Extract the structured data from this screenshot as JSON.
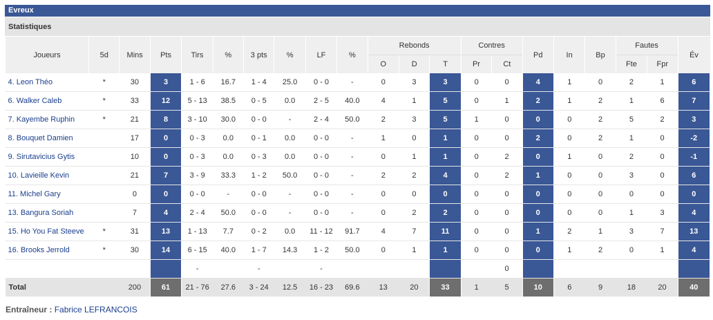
{
  "team_name": "Evreux",
  "section_title": "Statistiques",
  "headers": {
    "joueurs": "Joueurs",
    "d5": "5d",
    "mins": "Mins",
    "pts": "Pts",
    "tirs": "Tirs",
    "pct1": "%",
    "p3": "3 pts",
    "pct2": "%",
    "lf": "LF",
    "pct3": "%",
    "rebonds": "Rebonds",
    "contres": "Contres",
    "pd": "Pd",
    "in": "In",
    "bp": "Bp",
    "fautes": "Fautes",
    "ev": "Év",
    "o": "O",
    "d": "D",
    "t": "T",
    "pr": "Pr",
    "ct": "Ct",
    "fte": "Fte",
    "fpr": "Fpr"
  },
  "players": [
    {
      "name": "4. Leon Théo",
      "d5": "*",
      "mins": "30",
      "pts": "3",
      "tirs": "1 - 6",
      "tpct": "16.7",
      "p3": "1 - 4",
      "p3pct": "25.0",
      "lf": "0 - 0",
      "lfpct": "-",
      "o": "0",
      "d": "3",
      "t": "3",
      "pr": "0",
      "ct": "0",
      "pd": "4",
      "in": "1",
      "bp": "0",
      "fte": "2",
      "fpr": "1",
      "ev": "6"
    },
    {
      "name": "6. Walker Caleb",
      "d5": "*",
      "mins": "33",
      "pts": "12",
      "tirs": "5 - 13",
      "tpct": "38.5",
      "p3": "0 - 5",
      "p3pct": "0.0",
      "lf": "2 - 5",
      "lfpct": "40.0",
      "o": "4",
      "d": "1",
      "t": "5",
      "pr": "0",
      "ct": "1",
      "pd": "2",
      "in": "1",
      "bp": "2",
      "fte": "1",
      "fpr": "6",
      "ev": "7"
    },
    {
      "name": "7. Kayembe Ruphin",
      "d5": "*",
      "mins": "21",
      "pts": "8",
      "tirs": "3 - 10",
      "tpct": "30.0",
      "p3": "0 - 0",
      "p3pct": "-",
      "lf": "2 - 4",
      "lfpct": "50.0",
      "o": "2",
      "d": "3",
      "t": "5",
      "pr": "1",
      "ct": "0",
      "pd": "0",
      "in": "0",
      "bp": "2",
      "fte": "5",
      "fpr": "2",
      "ev": "3"
    },
    {
      "name": "8. Bouquet Damien",
      "d5": "",
      "mins": "17",
      "pts": "0",
      "tirs": "0 - 3",
      "tpct": "0.0",
      "p3": "0 - 1",
      "p3pct": "0.0",
      "lf": "0 - 0",
      "lfpct": "-",
      "o": "1",
      "d": "0",
      "t": "1",
      "pr": "0",
      "ct": "0",
      "pd": "2",
      "in": "0",
      "bp": "2",
      "fte": "1",
      "fpr": "0",
      "ev": "-2"
    },
    {
      "name": "9. Sirutavicius Gytis",
      "d5": "",
      "mins": "10",
      "pts": "0",
      "tirs": "0 - 3",
      "tpct": "0.0",
      "p3": "0 - 3",
      "p3pct": "0.0",
      "lf": "0 - 0",
      "lfpct": "-",
      "o": "0",
      "d": "1",
      "t": "1",
      "pr": "0",
      "ct": "2",
      "pd": "0",
      "in": "1",
      "bp": "0",
      "fte": "2",
      "fpr": "0",
      "ev": "-1"
    },
    {
      "name": "10. Lavieille Kevin",
      "d5": "",
      "mins": "21",
      "pts": "7",
      "tirs": "3 - 9",
      "tpct": "33.3",
      "p3": "1 - 2",
      "p3pct": "50.0",
      "lf": "0 - 0",
      "lfpct": "-",
      "o": "2",
      "d": "2",
      "t": "4",
      "pr": "0",
      "ct": "2",
      "pd": "1",
      "in": "0",
      "bp": "0",
      "fte": "3",
      "fpr": "0",
      "ev": "6"
    },
    {
      "name": "11. Michel Gary",
      "d5": "",
      "mins": "0",
      "pts": "0",
      "tirs": "0 - 0",
      "tpct": "-",
      "p3": "0 - 0",
      "p3pct": "-",
      "lf": "0 - 0",
      "lfpct": "-",
      "o": "0",
      "d": "0",
      "t": "0",
      "pr": "0",
      "ct": "0",
      "pd": "0",
      "in": "0",
      "bp": "0",
      "fte": "0",
      "fpr": "0",
      "ev": "0"
    },
    {
      "name": "13. Bangura Soriah",
      "d5": "",
      "mins": "7",
      "pts": "4",
      "tirs": "2 - 4",
      "tpct": "50.0",
      "p3": "0 - 0",
      "p3pct": "-",
      "lf": "0 - 0",
      "lfpct": "-",
      "o": "0",
      "d": "2",
      "t": "2",
      "pr": "0",
      "ct": "0",
      "pd": "0",
      "in": "0",
      "bp": "0",
      "fte": "1",
      "fpr": "3",
      "ev": "4"
    },
    {
      "name": "15. Ho You Fat Steeve",
      "d5": "*",
      "mins": "31",
      "pts": "13",
      "tirs": "1 - 13",
      "tpct": "7.7",
      "p3": "0 - 2",
      "p3pct": "0.0",
      "lf": "11 - 12",
      "lfpct": "91.7",
      "o": "4",
      "d": "7",
      "t": "11",
      "pr": "0",
      "ct": "0",
      "pd": "1",
      "in": "2",
      "bp": "1",
      "fte": "3",
      "fpr": "7",
      "ev": "13"
    },
    {
      "name": "16. Brooks Jerrold",
      "d5": "*",
      "mins": "30",
      "pts": "14",
      "tirs": "6 - 15",
      "tpct": "40.0",
      "p3": "1 - 7",
      "p3pct": "14.3",
      "lf": "1 - 2",
      "lfpct": "50.0",
      "o": "0",
      "d": "1",
      "t": "1",
      "pr": "0",
      "ct": "0",
      "pd": "0",
      "in": "1",
      "bp": "2",
      "fte": "0",
      "fpr": "1",
      "ev": "4"
    }
  ],
  "team_row": {
    "tirs": "-",
    "p3": "-",
    "lf": "-",
    "ct": "0"
  },
  "total": {
    "label": "Total",
    "mins": "200",
    "pts": "61",
    "tirs": "21 - 76",
    "tpct": "27.6",
    "p3": "3 - 24",
    "p3pct": "12.5",
    "lf": "16 - 23",
    "lfpct": "69.6",
    "o": "13",
    "d": "20",
    "t": "33",
    "pr": "1",
    "ct": "5",
    "pd": "10",
    "in": "6",
    "bp": "9",
    "fte": "18",
    "fpr": "20",
    "ev": "40"
  },
  "coach": {
    "label": "Entraîneur :",
    "name": "Fabrice LEFRANCOIS"
  },
  "colors": {
    "accent": "#3a5796",
    "total_highlight": "#6e6e6e",
    "header_bg": "#efefef",
    "link": "#1a3e8c"
  }
}
